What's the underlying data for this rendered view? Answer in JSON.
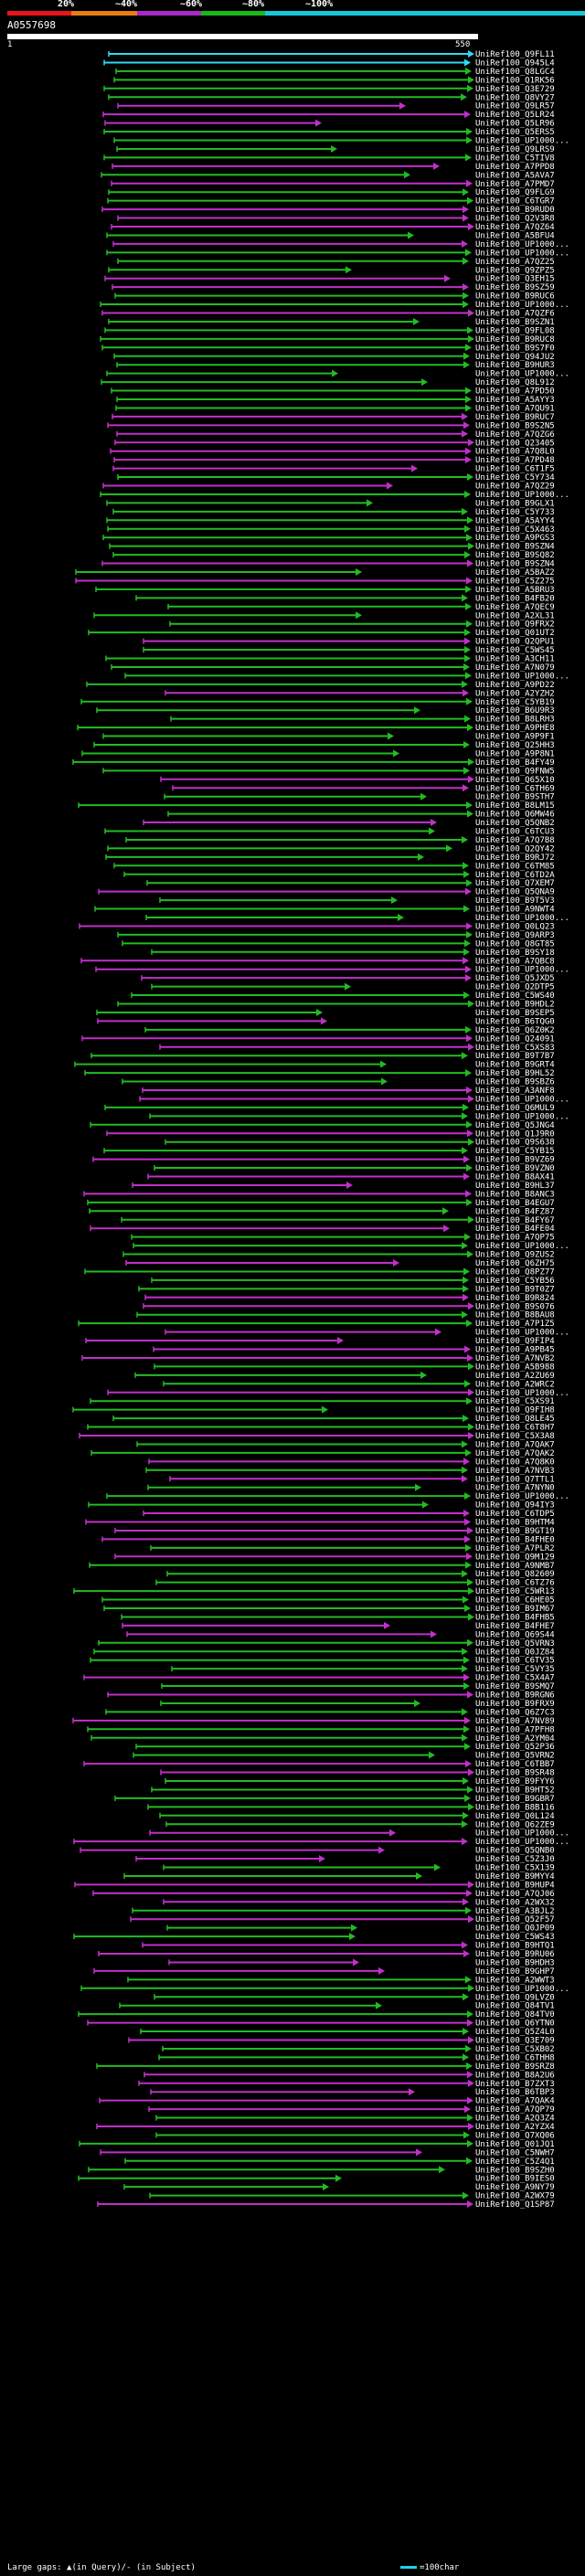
{
  "scale": {
    "labels": [
      "20%",
      "~40%",
      "~60%",
      "~80%",
      "~100%"
    ],
    "colors": [
      "#e8141c",
      "#e87c14",
      "#a828c8",
      "#18b818",
      "#18c8d8"
    ]
  },
  "query": {
    "id": "A0557698",
    "start": "1",
    "end": "550"
  },
  "hit_colors": {
    "cyan": "#30d8f0",
    "green": "#22bb22",
    "magenta": "#c030c8"
  },
  "hits": [
    "UniRef100_Q9FL11",
    "UniRef100_Q945L4",
    "UniRef100_Q8LGC4",
    "UniRef100_Q1RK56",
    "UniRef100_Q3E729",
    "UniRef100_Q8VY27",
    "UniRef100_Q9LR57",
    "UniRef100_Q5LR24",
    "UniRef100_Q5LR96",
    "UniRef100_Q5ERS5",
    "UniRef100_UP1000...",
    "UniRef100_Q9LRS9",
    "UniRef100_C5TIV8",
    "UniRef100_A7PPD8",
    "UniRef100_A5AVA7",
    "UniRef100_A7PMD7",
    "UniRef100_Q9FLG9",
    "UniRef100_C6TGR7",
    "UniRef100_B9RUD0",
    "UniRef100_Q2V3R8",
    "UniRef100_A7QZ64",
    "UniRef100_A5BFU4",
    "UniRef100_UP1000...",
    "UniRef100_UP1000...",
    "UniRef100_A7QZ25",
    "UniRef100_Q9ZPZ5",
    "UniRef100_Q3EH15",
    "UniRef100_B9SZ59",
    "UniRef100_B9RUC6",
    "UniRef100_UP1000...",
    "UniRef100_A7QZF6",
    "UniRef100_B9SZN1",
    "UniRef100_Q9FL08",
    "UniRef100_B9RUC8",
    "UniRef100_B9S7F0",
    "UniRef100_Q94JU2",
    "UniRef100_B9HUR3",
    "UniRef100_UP1000...",
    "UniRef100_Q8L912",
    "UniRef100_A7PD50",
    "UniRef100_A5AYY3",
    "UniRef100_A7QU91",
    "UniRef100_B9RUC7",
    "UniRef100_B9S2N5",
    "UniRef100_A7QZG6",
    "UniRef100_Q23405",
    "UniRef100_A7Q8L0",
    "UniRef100_A7PD48",
    "UniRef100_C6T1F5",
    "UniRef100_C5Y734",
    "UniRef100_A7QZ29",
    "UniRef100_UP1000...",
    "UniRef100_B9GLX1",
    "UniRef100_C5Y733",
    "UniRef100_A5AYY4",
    "UniRef100_C5X463",
    "UniRef100_A9PGS3",
    "UniRef100_B9SZN4",
    "UniRef100_B9SQ82",
    "UniRef100_B9SZN4",
    "UniRef100_A5BAZ2",
    "UniRef100_C5Z275",
    "UniRef100_A5BRU3",
    "UniRef100_B4FB20",
    "UniRef100_A7QEC9",
    "UniRef100_A2XL31",
    "UniRef100_Q9FRX2",
    "UniRef100_Q01UT2",
    "UniRef100_Q2QPU1",
    "UniRef100_C5WS45",
    "UniRef100_A3CH11",
    "UniRef100_A7N079",
    "UniRef100_UP1000...",
    "UniRef100_A9PD22",
    "UniRef100_A2YZH2",
    "UniRef100_C5YB19",
    "UniRef100_B6U9R3",
    "UniRef100_B8LRH3",
    "UniRef100_A9PHE8",
    "UniRef100_A9P9F1",
    "UniRef100_Q25HH3",
    "UniRef100_A9P8N1",
    "UniRef100_B4FY49",
    "UniRef100_Q9FNW5",
    "UniRef100_Q65X10",
    "UniRef100_C6TH69",
    "UniRef100_B9STH7",
    "UniRef100_B8LM15",
    "UniRef100_Q6MW46",
    "UniRef100_Q5QNB2",
    "UniRef100_C6TCU3",
    "UniRef100_A7Q7B8",
    "UniRef100_Q2QY42",
    "UniRef100_B9RJ72",
    "UniRef100_C6TM85",
    "UniRef100_C6TD2A",
    "UniRef100_Q7XEM7",
    "UniRef100_Q5QNA9",
    "UniRef100_B9T5V3",
    "UniRef100_A9NWT4",
    "UniRef100_UP1000...",
    "UniRef100_Q0LQ23",
    "UniRef100_Q9ARP3",
    "UniRef100_Q8GT85",
    "UniRef100_B9SY18",
    "UniRef100_A7QBC8",
    "UniRef100_UP1000...",
    "UniRef100_Q5JXD5",
    "UniRef100_Q2DTP5",
    "UniRef100_C5WS40",
    "UniRef100_B9HDL2",
    "UniRef100_B9SEP5",
    "UniRef100_B6TQG0",
    "UniRef100_Q6Z0K2",
    "UniRef100_Q24091",
    "UniRef100_C5XS83",
    "UniRef100_B9T7B7",
    "UniRef100_B9GRT4",
    "UniRef100_B9HL52",
    "UniRef100_B9SBZ6",
    "UniRef100_A3ANF8",
    "UniRef100_UP1000...",
    "UniRef100_Q6MUL9",
    "UniRef100_UP1000...",
    "UniRef100_Q5JNG4",
    "UniRef100_Q1J9R0",
    "UniRef100_Q9S638",
    "UniRef100_C5YB15",
    "UniRef100_B9VZ69",
    "UniRef100_B9VZN0",
    "UniRef100_B8AX41",
    "UniRef100_B9HL37",
    "UniRef100_B8ANC3",
    "UniRef100_B4EGU7",
    "UniRef100_B4FZ87",
    "UniRef100_B4FY67",
    "UniRef100_B4FE04",
    "UniRef100_A7QP75",
    "UniRef100_UP1000...",
    "UniRef100_Q9ZUS2",
    "UniRef100_Q6ZH75",
    "UniRef100_Q8PZ77",
    "UniRef100_C5YB56",
    "UniRef100_B9T0Z7",
    "UniRef100_B9R824",
    "UniRef100_B9S076",
    "UniRef100_B8BAU8",
    "UniRef100_A7P1Z5",
    "UniRef100_UP1000...",
    "UniRef100_Q9FIP4",
    "UniRef100_A9PB45",
    "UniRef100_A7NVB2",
    "UniRef100_A5B988",
    "UniRef100_A2ZU69",
    "UniRef100_A2WRC2",
    "UniRef100_UP1000...",
    "UniRef100_C5XS91",
    "UniRef100_Q9FIH8",
    "UniRef100_Q8LE45",
    "UniRef100_C6T8H7",
    "UniRef100_C5X3A8",
    "UniRef100_A7QAK7",
    "UniRef100_A7QAK2",
    "UniRef100_A7Q8K0",
    "UniRef100_A7NVB3",
    "UniRef100_Q7TTL1",
    "UniRef100_A7NYN0",
    "UniRef100_UP1000...",
    "UniRef100_Q94IY3",
    "UniRef100_C6TDP5",
    "UniRef100_B9HTM4",
    "UniRef100_B9GT19",
    "UniRef100_B4FHE0",
    "UniRef100_A7PLR2",
    "UniRef100_Q9M129",
    "UniRef100_A9NMB7",
    "UniRef100_Q82609",
    "UniRef100_C6TZ76",
    "UniRef100_C5WR13",
    "UniRef100_C6HE05",
    "UniRef100_B9IM67",
    "UniRef100_B4FHB5",
    "UniRef100_B4FHE7",
    "UniRef100_Q69S44",
    "UniRef100_Q5VRN3",
    "UniRef100_Q0JZ84",
    "UniRef100_C6TV35",
    "UniRef100_C5VY35",
    "UniRef100_C5X4A7",
    "UniRef100_B9SMQ7",
    "UniRef100_B9RGN6",
    "UniRef100_B9FRX9",
    "UniRef100_Q6Z7C3",
    "UniRef100_A7NV89",
    "UniRef100_A7PFH8",
    "UniRef100_A2YM04",
    "UniRef100_Q52P36",
    "UniRef100_Q5VRN2",
    "UniRef100_C6TBB7",
    "UniRef100_B9SR48",
    "UniRef100_B9FYY6",
    "UniRef100_B9HT52",
    "UniRef100_B9GBR7",
    "UniRef100_B8B116",
    "UniRef100_Q0L124",
    "UniRef100_Q62ZE9",
    "UniRef100_UP1000...",
    "UniRef100_UP1000...",
    "UniRef100_Q5QNB0",
    "UniRef100_C5Z3J0",
    "UniRef100_C5X139",
    "UniRef100_B9MYY4",
    "UniRef100_B9HUP4",
    "UniRef100_A7QJ06",
    "UniRef100_A2WX32",
    "UniRef100_A3BJL2",
    "UniRef100_Q52F57",
    "UniRef100_Q0JP09",
    "UniRef100_C5WS43",
    "UniRef100_B9HTQ1",
    "UniRef100_B9RU06",
    "UniRef100_B9HDH3",
    "UniRef100_B9GHP7",
    "UniRef100_A2WWT3",
    "UniRef100_UP1000...",
    "UniRef100_Q9LVZ0",
    "UniRef100_Q84TV1",
    "UniRef100_Q84TV0",
    "UniRef100_Q6YTN0",
    "UniRef100_Q5Z4L0",
    "UniRef100_Q3E709",
    "UniRef100_C5XB02",
    "UniRef100_C6THH8",
    "UniRef100_B9SRZ8",
    "UniRef100_B8A2U6",
    "UniRef100_B7ZXT3",
    "UniRef100_B6TBP3",
    "UniRef100_A7QAK4",
    "UniRef100_A7QP79",
    "UniRef100_A2Q3Z4",
    "UniRef100_A2YZX4",
    "UniRef100_Q7XQ06",
    "UniRef100_Q01JQ1",
    "UniRef100_C5NWH7",
    "UniRef100_C5Z4Q1",
    "UniRef100_B9SZH0",
    "UniRef100_B9IES0",
    "UniRef100_A9NY79",
    "UniRef100_A2WX79",
    "UniRef100_Q1SP87"
  ],
  "legend": {
    "left": "Large gaps: ▲(in Query)/- (in Subject)",
    "right": "=100char"
  }
}
